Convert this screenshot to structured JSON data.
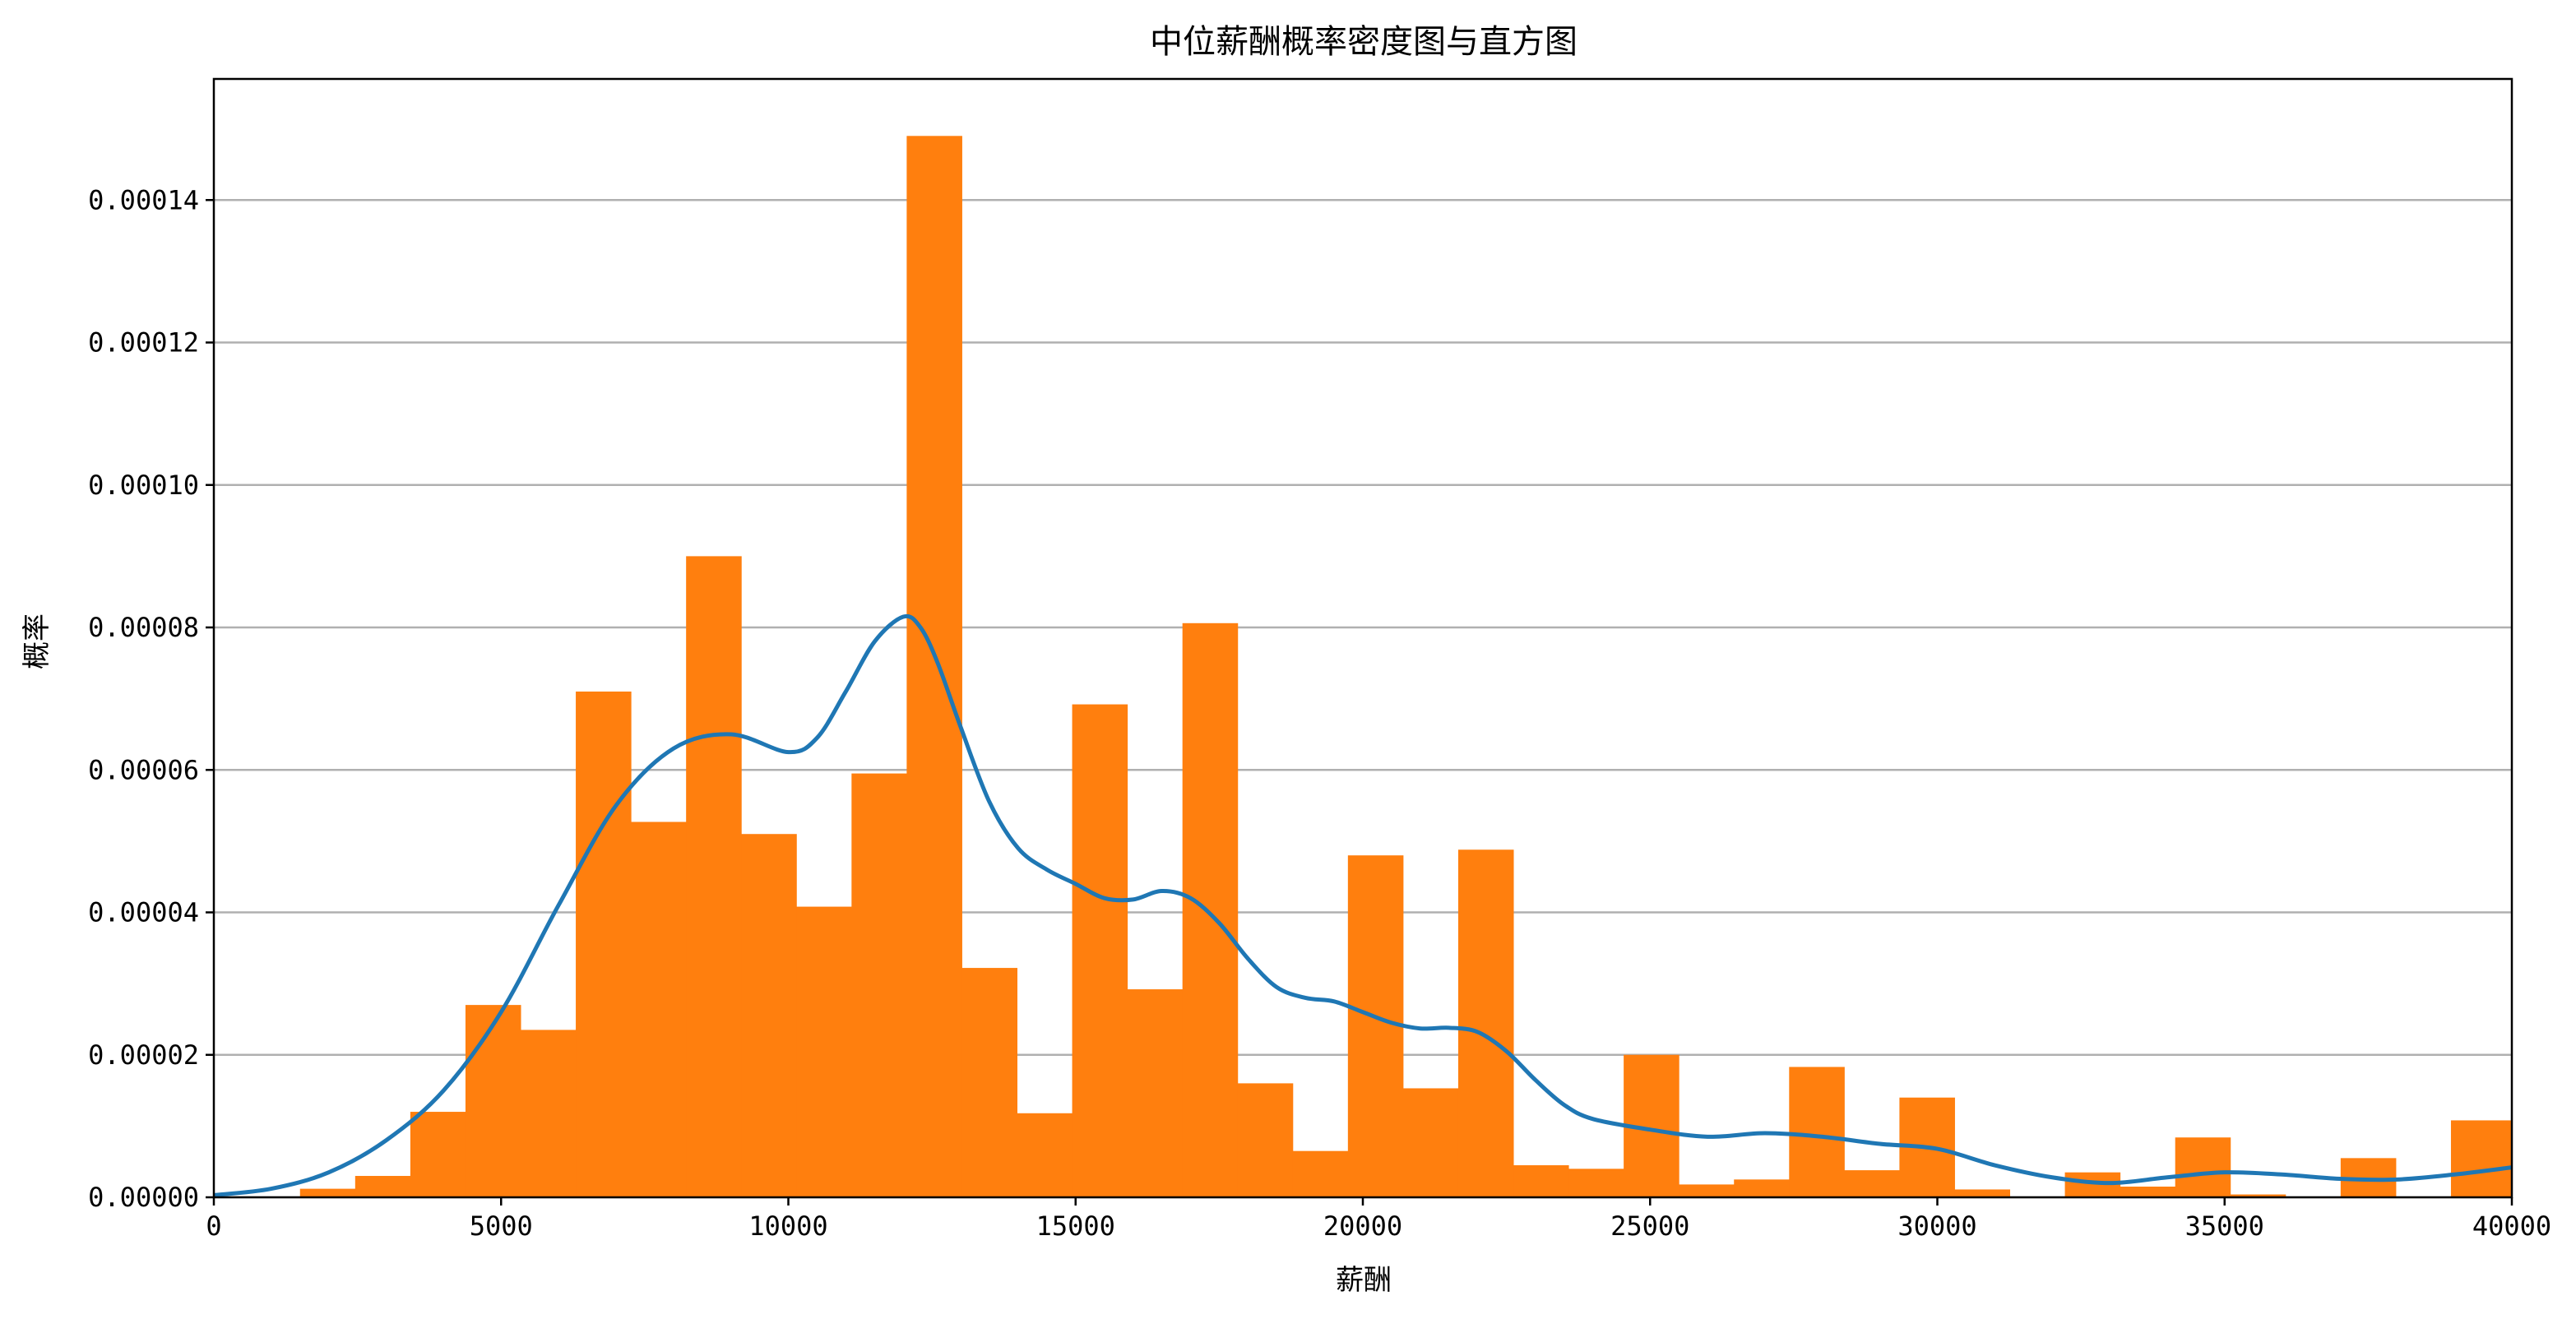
{
  "chart_data": {
    "type": "bar",
    "title": "中位薪酬概率密度图与直方图",
    "xlabel": "薪酬",
    "ylabel": "概率",
    "xlim": [
      0,
      40000
    ],
    "ylim": [
      0,
      0.000157
    ],
    "grid": "y",
    "x_ticks": [
      0,
      5000,
      10000,
      15000,
      20000,
      25000,
      30000,
      35000,
      40000
    ],
    "y_ticks": [
      0.0,
      2e-05,
      4e-05,
      6e-05,
      8e-05,
      0.0001,
      0.00012,
      0.00014
    ],
    "x_tick_labels": [
      "0",
      "5000",
      "10000",
      "15000",
      "20000",
      "25000",
      "30000",
      "35000",
      "40000"
    ],
    "y_tick_labels": [
      "0.00000",
      "0.00002",
      "0.00004",
      "0.00006",
      "0.00008",
      "0.00010",
      "0.00012",
      "0.00014"
    ],
    "colors": {
      "histogram": "#ff7f0e",
      "density": "#1f77b4",
      "grid": "#b0b0b0"
    },
    "histogram": {
      "bin_edges": [
        1500,
        2460,
        3420,
        4380,
        5340,
        6300,
        7260,
        8220,
        9180,
        10140,
        11100,
        12060,
        13020,
        13980,
        14940,
        15900,
        16860,
        17820,
        18780,
        19740,
        20700,
        21660,
        22620,
        23580,
        24540,
        25500,
        26460,
        27420,
        28380,
        29340,
        30300,
        31260,
        32220,
        33180,
        34140,
        35100,
        36060,
        37020,
        37980,
        38940,
        40000
      ],
      "values": [
        1.2e-06,
        3e-06,
        1.2e-05,
        2.7e-05,
        2.35e-05,
        7.1e-05,
        5.27e-05,
        9e-05,
        5.1e-05,
        4.08e-05,
        5.95e-05,
        0.000149,
        3.22e-05,
        1.18e-05,
        6.92e-05,
        2.92e-05,
        8.06e-05,
        1.6e-05,
        6.5e-06,
        4.8e-05,
        1.53e-05,
        4.88e-05,
        4.5e-06,
        4e-06,
        2e-05,
        1.8e-06,
        2.5e-06,
        1.83e-05,
        3.8e-06,
        1.4e-05,
        1.1e-06,
        0.0,
        3.5e-06,
        1.5e-06,
        8.4e-06,
        4e-07,
        0.0,
        5.5e-06,
        0.0,
        1.08e-05
      ]
    },
    "density": {
      "x": [
        0,
        1000,
        2000,
        3000,
        4000,
        5000,
        6000,
        7000,
        8000,
        9000,
        10000,
        10500,
        11000,
        11500,
        12000,
        12300,
        12600,
        13000,
        13500,
        14000,
        14500,
        15000,
        15500,
        16000,
        16500,
        17000,
        17500,
        18000,
        18500,
        19000,
        19500,
        20000,
        20500,
        21000,
        21500,
        22000,
        22500,
        23000,
        23500,
        24000,
        25000,
        26000,
        27000,
        28000,
        29000,
        30000,
        31000,
        32000,
        33000,
        34000,
        35000,
        36000,
        37000,
        38000,
        39000,
        40000
      ],
      "y": [
        3e-07,
        1.2e-06,
        3.5e-06,
        8e-06,
        1.5e-05,
        2.6e-05,
        4.1e-05,
        5.5e-05,
        6.3e-05,
        6.5e-05,
        6.25e-05,
        6.45e-05,
        7.1e-05,
        7.8e-05,
        8.15e-05,
        8e-05,
        7.5e-05,
        6.6e-05,
        5.55e-05,
        4.9e-05,
        4.6e-05,
        4.4e-05,
        4.2e-05,
        4.18e-05,
        4.3e-05,
        4.2e-05,
        3.85e-05,
        3.35e-05,
        2.95e-05,
        2.8e-05,
        2.75e-05,
        2.6e-05,
        2.45e-05,
        2.37e-05,
        2.38e-05,
        2.32e-05,
        2.05e-05,
        1.65e-05,
        1.3e-05,
        1.1e-05,
        9.5e-06,
        8.5e-06,
        9e-06,
        8.5e-06,
        7.5e-06,
        6.8e-06,
        4.5e-06,
        2.8e-06,
        2e-06,
        2.8e-06,
        3.5e-06,
        3.2e-06,
        2.6e-06,
        2.5e-06,
        3.2e-06,
        4.2e-06
      ]
    }
  }
}
